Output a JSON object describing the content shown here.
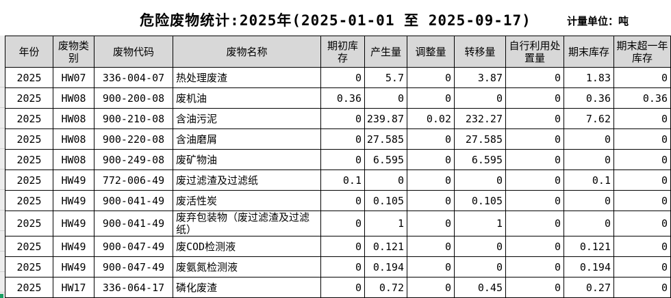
{
  "title": "危险废物统计:2025年(2025-01-01 至 2025-09-17)",
  "unit_label": "计量单位：吨",
  "table": {
    "columns": [
      "年份",
      "废物类别",
      "废物代码",
      "废物名称",
      "期初库存",
      "产生量",
      "调整量",
      "转移量",
      "自行利用处置量",
      "期末库存",
      "期末超一年库存"
    ],
    "rows": [
      [
        "2025",
        "HW07",
        "336-004-07",
        "热处理废渣",
        "0",
        "5.7",
        "0",
        "3.87",
        "0",
        "1.83",
        "0"
      ],
      [
        "2025",
        "HW08",
        "900-200-08",
        "废机油",
        "0.36",
        "0",
        "0",
        "0",
        "0",
        "0.36",
        "0.36"
      ],
      [
        "2025",
        "HW08",
        "900-210-08",
        "含油污泥",
        "0",
        "239.87",
        "0.02",
        "232.27",
        "0",
        "7.62",
        "0"
      ],
      [
        "2025",
        "HW08",
        "900-220-08",
        "含油磨屑",
        "0",
        "27.585",
        "0",
        "27.585",
        "0",
        "0",
        "0"
      ],
      [
        "2025",
        "HW08",
        "900-249-08",
        "废矿物油",
        "0",
        "6.595",
        "0",
        "6.595",
        "0",
        "0",
        "0"
      ],
      [
        "2025",
        "HW49",
        "772-006-49",
        "废过滤渣及过滤纸",
        "0.1",
        "0",
        "0",
        "0",
        "0",
        "0.1",
        "0"
      ],
      [
        "2025",
        "HW49",
        "900-041-49",
        "废活性炭",
        "0",
        "0.105",
        "0",
        "0.105",
        "0",
        "0",
        "0"
      ],
      [
        "2025",
        "HW49",
        "900-041-49",
        "废弃包装物（废过滤渣及过滤纸）",
        "0",
        "1",
        "0",
        "1",
        "0",
        "0",
        "0"
      ],
      [
        "2025",
        "HW49",
        "900-047-49",
        "废COD检测液",
        "0",
        "0.121",
        "0",
        "0",
        "0",
        "0.121",
        "0"
      ],
      [
        "2025",
        "HW49",
        "900-047-49",
        "废氨氮检测液",
        "0",
        "0.194",
        "0",
        "0",
        "0",
        "0.194",
        "0"
      ],
      [
        "2025",
        "HW17",
        "336-064-17",
        "磷化废渣",
        "0",
        "0.72",
        "0",
        "0.45",
        "0",
        "0.27",
        "0"
      ]
    ]
  },
  "colors": {
    "header_bg": "#d8d8d8",
    "grid_border": "#000000",
    "margin_strip": "#ededed",
    "selection_green": "#189e63"
  }
}
